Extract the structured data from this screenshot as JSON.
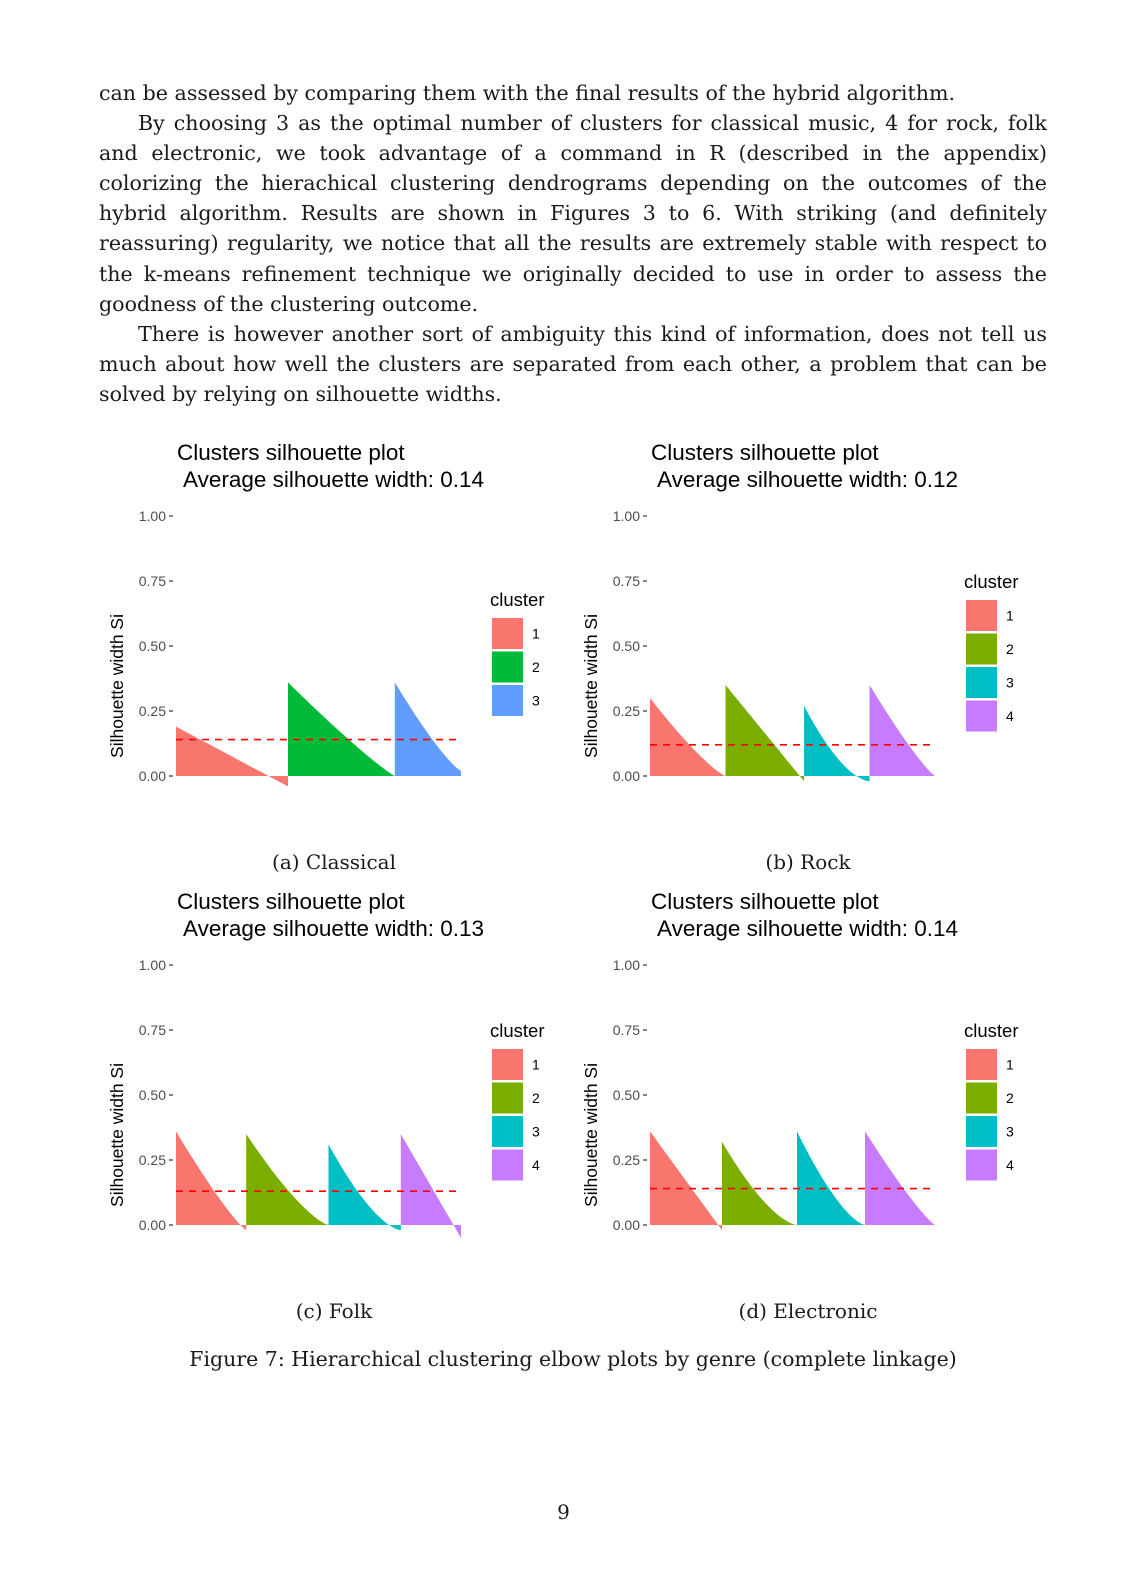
{
  "paragraphs": [
    {
      "indent": false,
      "text": "can be assessed by comparing them with the final results of the hybrid algorithm."
    },
    {
      "indent": true,
      "text": "By choosing 3 as the optimal number of clusters for classical music, 4 for rock, folk and electronic, we took advantage of a command in R (described in the appendix) colorizing the hierachical clustering dendrograms depending on the outcomes of the hybrid algorithm. Results are shown in Figures 3 to 6. With striking (and definitely reassuring) regularity, we notice that all the results are extremely stable with respect to the k-means refinement technique we originally decided to use in order to assess the goodness of the clustering outcome."
    },
    {
      "indent": true,
      "text": "There is however another sort of ambiguity this kind of information, does not tell us much about how well the clusters are separated from each other, a problem that can be solved by relying on silhouette widths."
    }
  ],
  "colors": {
    "cluster_3": [
      "#F8766D",
      "#00BA38",
      "#619CFF"
    ],
    "cluster_4": [
      "#F8766D",
      "#7CAE00",
      "#00BFC4",
      "#C77CFF"
    ],
    "average_line": "#FF0000"
  },
  "chart_data": [
    {
      "type": "area",
      "title": "Clusters silhouette plot",
      "subtitle": "Average silhouette width: 0.14",
      "ylabel": "Silhouette width Si",
      "ylim": [
        0,
        1
      ],
      "yticks": [
        "0.00",
        "0.25",
        "0.50",
        "0.75",
        "1.00"
      ],
      "legend_title": "cluster",
      "legend_position": "right",
      "average": 0.14,
      "series": [
        {
          "name": "1",
          "n": 110,
          "start": 0.19,
          "end": -0.04,
          "shape": 1.0
        },
        {
          "name": "2",
          "n": 105,
          "start": 0.36,
          "end": 0.0,
          "shape": 0.9
        },
        {
          "name": "3",
          "n": 65,
          "start": 0.36,
          "end": 0.02,
          "shape": 0.8
        }
      ],
      "caption": "(a) Classical"
    },
    {
      "type": "area",
      "title": "Clusters silhouette plot",
      "subtitle": "Average silhouette width: 0.12",
      "ylabel": "Silhouette width Si",
      "ylim": [
        0,
        1
      ],
      "yticks": [
        "0.00",
        "0.25",
        "0.50",
        "0.75",
        "1.00"
      ],
      "legend_title": "cluster",
      "legend_position": "right",
      "average": 0.12,
      "series": [
        {
          "name": "1",
          "n": 75,
          "start": 0.3,
          "end": 0.0,
          "shape": 0.8
        },
        {
          "name": "2",
          "n": 78,
          "start": 0.35,
          "end": -0.02,
          "shape": 1.0
        },
        {
          "name": "3",
          "n": 65,
          "start": 0.27,
          "end": -0.02,
          "shape": 0.45
        },
        {
          "name": "4",
          "n": 65,
          "start": 0.35,
          "end": 0.0,
          "shape": 0.85
        }
      ],
      "caption": "(b) Rock"
    },
    {
      "type": "area",
      "title": "Clusters silhouette plot",
      "subtitle": "Average silhouette width: 0.13",
      "ylabel": "Silhouette width Si",
      "ylim": [
        0,
        1
      ],
      "yticks": [
        "0.00",
        "0.25",
        "0.50",
        "0.75",
        "1.00"
      ],
      "legend_title": "cluster",
      "legend_position": "right",
      "average": 0.13,
      "series": [
        {
          "name": "1",
          "n": 70,
          "start": 0.36,
          "end": -0.02,
          "shape": 0.85
        },
        {
          "name": "2",
          "n": 82,
          "start": 0.35,
          "end": 0.0,
          "shape": 0.7
        },
        {
          "name": "3",
          "n": 72,
          "start": 0.31,
          "end": -0.02,
          "shape": 0.55
        },
        {
          "name": "4",
          "n": 60,
          "start": 0.35,
          "end": -0.05,
          "shape": 1.0
        }
      ],
      "caption": "(c) Folk"
    },
    {
      "type": "area",
      "title": "Clusters silhouette plot",
      "subtitle": "Average silhouette width: 0.14",
      "ylabel": "Silhouette width Si",
      "ylim": [
        0,
        1
      ],
      "yticks": [
        "0.00",
        "0.25",
        "0.50",
        "0.75",
        "1.00"
      ],
      "legend_title": "cluster",
      "legend_position": "right",
      "average": 0.14,
      "series": [
        {
          "name": "1",
          "n": 72,
          "start": 0.36,
          "end": -0.02,
          "shape": 1.0
        },
        {
          "name": "2",
          "n": 75,
          "start": 0.32,
          "end": 0.0,
          "shape": 0.55
        },
        {
          "name": "3",
          "n": 68,
          "start": 0.36,
          "end": 0.0,
          "shape": 0.6
        },
        {
          "name": "4",
          "n": 70,
          "start": 0.36,
          "end": 0.0,
          "shape": 0.85
        }
      ],
      "caption": "(d) Electronic"
    }
  ],
  "figure_caption": "Figure 7: Hierarchical clustering elbow plots by genre (complete linkage)",
  "page_number": "9"
}
